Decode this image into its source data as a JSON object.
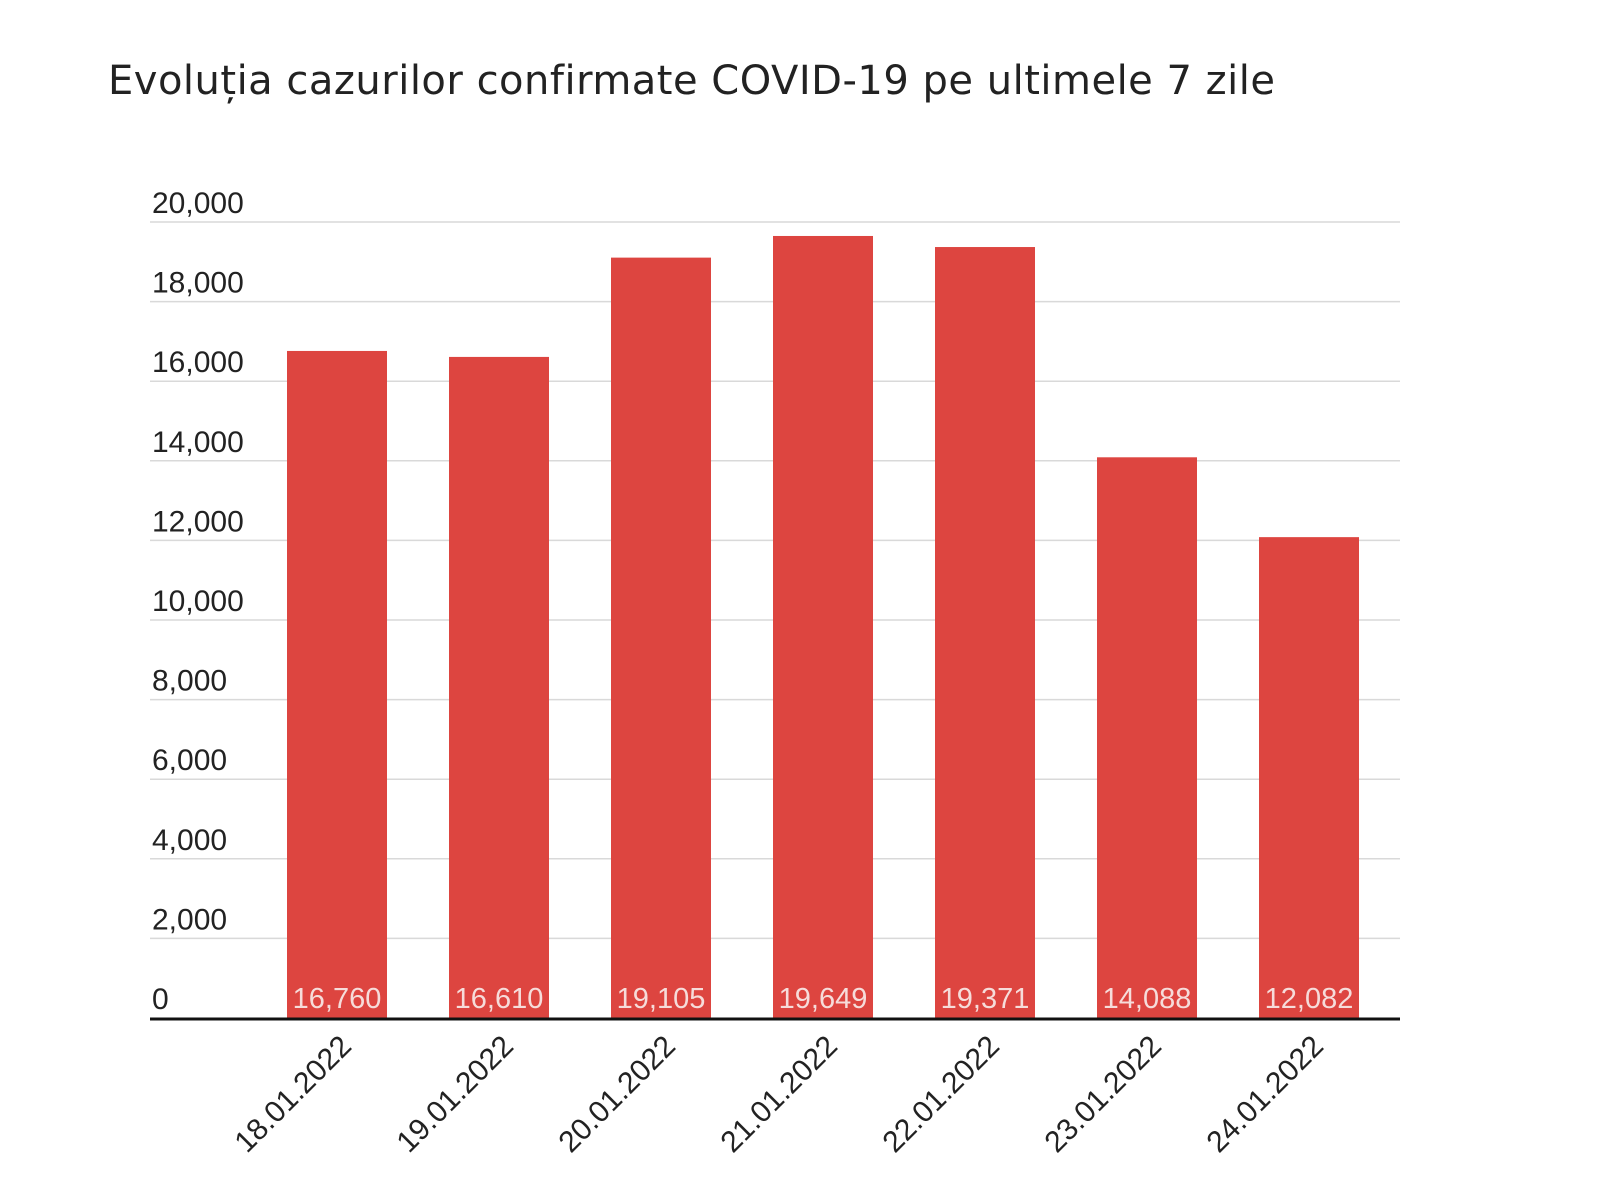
{
  "chart_data": {
    "type": "bar",
    "title": "Evoluția cazurilor confirmate COVID-19 pe ultimele 7 zile",
    "xlabel": "",
    "ylabel": "",
    "categories": [
      "18.01.2022",
      "19.01.2022",
      "20.01.2022",
      "21.01.2022",
      "22.01.2022",
      "23.01.2022",
      "24.01.2022"
    ],
    "values": [
      16760,
      16610,
      19105,
      19649,
      19371,
      14088,
      12082
    ],
    "value_labels": [
      "16,760",
      "16,610",
      "19,105",
      "19,649",
      "19,371",
      "14,088",
      "12,082"
    ],
    "ylim": [
      0,
      20000
    ],
    "yticks": [
      0,
      2000,
      4000,
      6000,
      8000,
      10000,
      12000,
      14000,
      16000,
      18000,
      20000
    ],
    "ytick_labels": [
      "0",
      "2,000",
      "4,000",
      "6,000",
      "8,000",
      "10,000",
      "12,000",
      "14,000",
      "16,000",
      "18,000",
      "20,000"
    ],
    "grid": true,
    "legend": "none",
    "bar_color": "#dd4540",
    "label_color": "#f6dcda"
  }
}
